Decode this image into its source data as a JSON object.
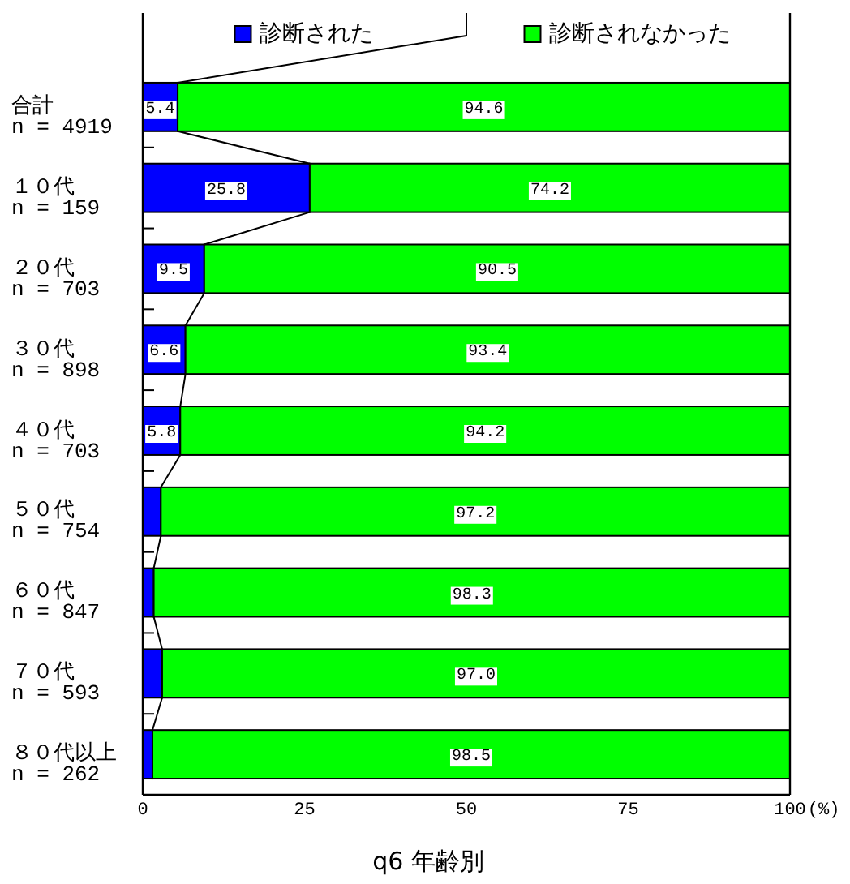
{
  "chart_data": {
    "type": "bar",
    "orientation": "horizontal",
    "stacked": true,
    "title": "q6 年齢別",
    "xlabel": "(%)",
    "categories": [
      "合計\nn = 4919",
      "１０代\nn = 159",
      "２０代\nn = 703",
      "３０代\nn = 898",
      "４０代\nn = 703",
      "５０代\nn = 754",
      "６０代\nn = 847",
      "７０代\nn = 593",
      "８０代以上\nn = 262"
    ],
    "series": [
      {
        "name": "診断された",
        "color": "#0000ff",
        "values": [
          5.4,
          25.8,
          9.5,
          6.6,
          5.8,
          2.8,
          1.7,
          3.0,
          1.5
        ],
        "value_labels": [
          "5.4",
          "25.8",
          "9.5",
          "6.6",
          "5.8",
          null,
          null,
          null,
          null
        ]
      },
      {
        "name": "診断されなかった",
        "color": "#00ff00",
        "values": [
          94.6,
          74.2,
          90.5,
          93.4,
          94.2,
          97.2,
          98.3,
          97.0,
          98.5
        ],
        "value_labels": [
          "94.6",
          "74.2",
          "90.5",
          "93.4",
          "94.2",
          "97.2",
          "98.3",
          "97.0",
          "98.5"
        ]
      }
    ],
    "xlim": [
      0,
      100
    ],
    "xticks": [
      0,
      25,
      50,
      75,
      100
    ],
    "legend": "top"
  }
}
